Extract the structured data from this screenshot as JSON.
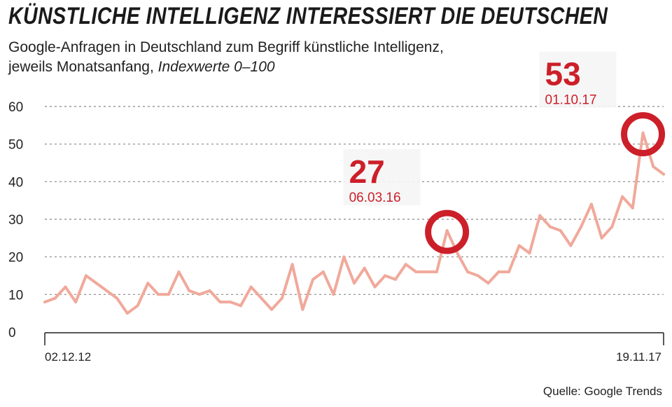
{
  "title": "KÜNSTLICHE INTELLIGENZ INTERESSIERT DIE DEUTSCHEN",
  "subtitle_line1": "Google-Anfragen in Deutschland zum Begriff künstliche Intelligenz,",
  "subtitle_line2": "jeweils Monatsanfang, ",
  "subtitle_unit": "Indexwerte 0–100",
  "source": "Quelle: Google Trends",
  "colors": {
    "line": "#f0a99b",
    "accent": "#cc1f29",
    "grid": "#888888"
  },
  "chart_data": {
    "type": "line",
    "title": "KÜNSTLICHE INTELLIGENZ INTERESSIERT DIE DEUTSCHEN",
    "xlabel": "",
    "ylabel": "",
    "ylim": [
      0,
      60
    ],
    "yticks": [
      "0",
      "10",
      "20",
      "30",
      "40",
      "50",
      "60"
    ],
    "x_tick_labels": [
      "02.12.12",
      "19.11.17"
    ],
    "grid": true,
    "series": [
      {
        "values": [
          8,
          9,
          12,
          8,
          15,
          13,
          11,
          9,
          5,
          7,
          13,
          10,
          10,
          16,
          11,
          10,
          11,
          8,
          8,
          7,
          12,
          9,
          6,
          9,
          18,
          6,
          14,
          16,
          10,
          20,
          13,
          17,
          12,
          15,
          14,
          18,
          16,
          16,
          16,
          27,
          21,
          16,
          15,
          13,
          16,
          16,
          23,
          21,
          31,
          28,
          27,
          23,
          28,
          34,
          25,
          28,
          36,
          33,
          53,
          44,
          42
        ]
      }
    ],
    "annotations": [
      {
        "value": "27",
        "date": "06.03.16"
      },
      {
        "value": "53",
        "date": "01.10.17"
      }
    ]
  }
}
